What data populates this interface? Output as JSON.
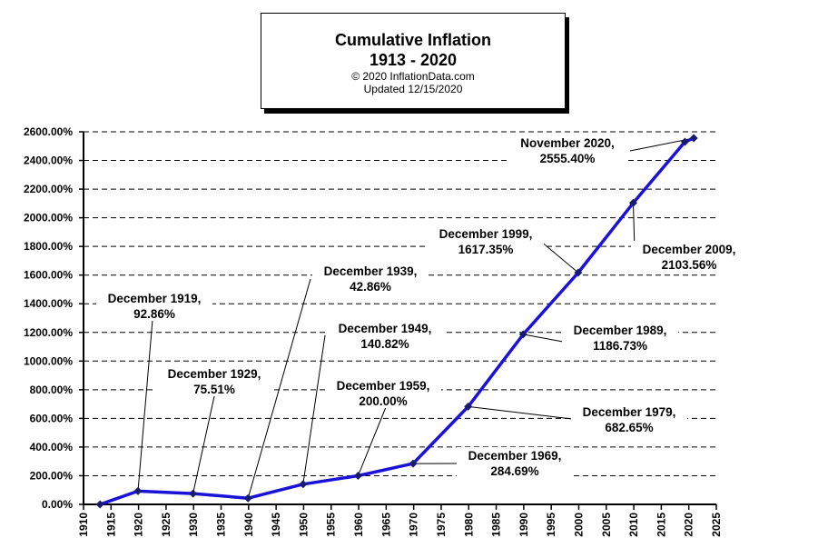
{
  "title": {
    "line1": "Cumulative Inflation",
    "line2": "1913 - 2020",
    "copyright": "© 2020 InflationData.com",
    "updated": "Updated   12/15/2020"
  },
  "colors": {
    "line": "#1b12d9",
    "marker": "#1a1a6e",
    "grid": "#000000"
  },
  "chart_data": {
    "type": "line",
    "title": "Cumulative Inflation 1913 - 2020",
    "xlabel": "",
    "ylabel": "",
    "xlim": [
      1910,
      2025
    ],
    "ylim": [
      0,
      2600
    ],
    "grid": "horizontal dashed",
    "x_ticks": [
      1910,
      1915,
      1920,
      1925,
      1930,
      1935,
      1940,
      1945,
      1950,
      1955,
      1960,
      1965,
      1970,
      1975,
      1980,
      1985,
      1990,
      1995,
      2000,
      2005,
      2010,
      2015,
      2020,
      2025
    ],
    "y_ticks": [
      0,
      200,
      400,
      600,
      800,
      1000,
      1200,
      1400,
      1600,
      1800,
      2000,
      2200,
      2400,
      2600
    ],
    "y_tick_labels": [
      "0.00%",
      "200.00%",
      "400.00%",
      "600.00%",
      "800.00%",
      "1000.00%",
      "1200.00%",
      "1400.00%",
      "1600.00%",
      "1800.00%",
      "2000.00%",
      "2200.00%",
      "2400.00%",
      "2600.00%"
    ],
    "series": [
      {
        "name": "Cumulative Inflation",
        "x": [
          1913,
          1919.9,
          1929.9,
          1939.9,
          1949.9,
          1959.9,
          1969.9,
          1979.9,
          1989.9,
          1999.9,
          2009.9,
          2019.3,
          2020.9
        ],
        "values": [
          0,
          92.86,
          75.51,
          42.86,
          140.82,
          200.0,
          284.69,
          682.65,
          1186.73,
          1617.35,
          2103.56,
          2530,
          2555.4
        ]
      }
    ],
    "annotations": [
      {
        "line1": "December 1919,",
        "line2": "92.86%",
        "x": 1919.9,
        "y": 92.86
      },
      {
        "line1": "December 1929,",
        "line2": "75.51%",
        "x": 1929.9,
        "y": 75.51
      },
      {
        "line1": "December 1939,",
        "line2": "42.86%",
        "x": 1939.9,
        "y": 42.86
      },
      {
        "line1": "December 1949,",
        "line2": "140.82%",
        "x": 1949.9,
        "y": 140.82
      },
      {
        "line1": "December 1959,",
        "line2": "200.00%",
        "x": 1959.9,
        "y": 200.0
      },
      {
        "line1": "December 1969,",
        "line2": "284.69%",
        "x": 1969.9,
        "y": 284.69
      },
      {
        "line1": "December 1979,",
        "line2": "682.65%",
        "x": 1979.9,
        "y": 682.65
      },
      {
        "line1": "December 1989,",
        "line2": "1186.73%",
        "x": 1989.9,
        "y": 1186.73
      },
      {
        "line1": "December 1999,",
        "line2": "1617.35%",
        "x": 1999.9,
        "y": 1617.35
      },
      {
        "line1": "December 2009,",
        "line2": "2103.56%",
        "x": 2009.9,
        "y": 2103.56
      },
      {
        "line1": "November 2020,",
        "line2": "2555.40%",
        "x": 2020.9,
        "y": 2555.4
      }
    ]
  }
}
